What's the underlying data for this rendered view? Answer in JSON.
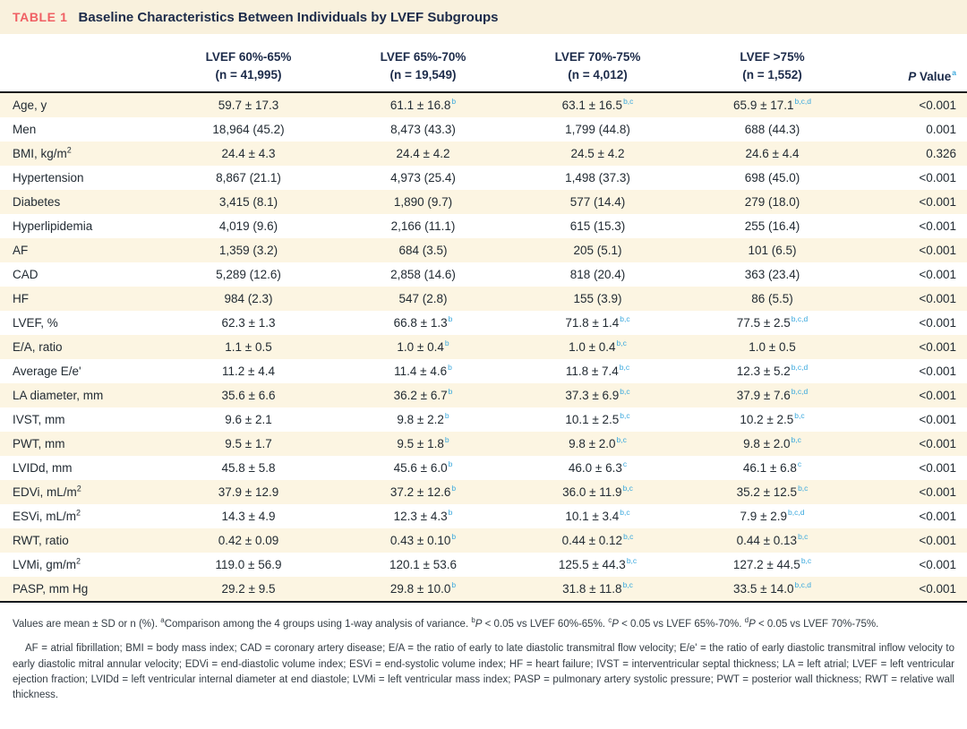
{
  "colors": {
    "accent_red": "#f05f63",
    "heading_navy": "#1c2b4a",
    "superscript_blue": "#3aa8dd",
    "row_band_cream": "#fcf5e2",
    "title_bar_cream": "#f9f1dd"
  },
  "table": {
    "label": "TABLE 1",
    "title": "Baseline Characteristics Between Individuals by LVEF Subgroups",
    "columns": [
      {
        "line1": "LVEF 60%-65%",
        "line2": "(n = 41,995)"
      },
      {
        "line1": "LVEF 65%-70%",
        "line2": "(n = 19,549)"
      },
      {
        "line1": "LVEF 70%-75%",
        "line2": "(n = 4,012)"
      },
      {
        "line1": "LVEF >75%",
        "line2": "(n = 1,552)"
      }
    ],
    "p_header": {
      "italic": "P",
      "text": " Value",
      "sup": "a"
    },
    "rows": [
      {
        "label": "Age, y",
        "label_sup": "",
        "values": [
          {
            "v": "59.7 ± 17.3",
            "sup": ""
          },
          {
            "v": "61.1 ± 16.8",
            "sup": "b"
          },
          {
            "v": "63.1 ± 16.5",
            "sup": "b,c"
          },
          {
            "v": "65.9 ± 17.1",
            "sup": "b,c,d"
          }
        ],
        "p": "<0.001"
      },
      {
        "label": "Men",
        "label_sup": "",
        "values": [
          {
            "v": "18,964 (45.2)",
            "sup": ""
          },
          {
            "v": "8,473 (43.3)",
            "sup": ""
          },
          {
            "v": "1,799 (44.8)",
            "sup": ""
          },
          {
            "v": "688 (44.3)",
            "sup": ""
          }
        ],
        "p": "0.001"
      },
      {
        "label": "BMI, kg/m",
        "label_sup": "2",
        "values": [
          {
            "v": "24.4 ± 4.3",
            "sup": ""
          },
          {
            "v": "24.4 ± 4.2",
            "sup": ""
          },
          {
            "v": "24.5 ± 4.2",
            "sup": ""
          },
          {
            "v": "24.6 ± 4.4",
            "sup": ""
          }
        ],
        "p": "0.326"
      },
      {
        "label": "Hypertension",
        "label_sup": "",
        "values": [
          {
            "v": "8,867 (21.1)",
            "sup": ""
          },
          {
            "v": "4,973 (25.4)",
            "sup": ""
          },
          {
            "v": "1,498 (37.3)",
            "sup": ""
          },
          {
            "v": "698 (45.0)",
            "sup": ""
          }
        ],
        "p": "<0.001"
      },
      {
        "label": "Diabetes",
        "label_sup": "",
        "values": [
          {
            "v": "3,415 (8.1)",
            "sup": ""
          },
          {
            "v": "1,890 (9.7)",
            "sup": ""
          },
          {
            "v": "577 (14.4)",
            "sup": ""
          },
          {
            "v": "279 (18.0)",
            "sup": ""
          }
        ],
        "p": "<0.001"
      },
      {
        "label": "Hyperlipidemia",
        "label_sup": "",
        "values": [
          {
            "v": "4,019 (9.6)",
            "sup": ""
          },
          {
            "v": "2,166 (11.1)",
            "sup": ""
          },
          {
            "v": "615 (15.3)",
            "sup": ""
          },
          {
            "v": "255 (16.4)",
            "sup": ""
          }
        ],
        "p": "<0.001"
      },
      {
        "label": "AF",
        "label_sup": "",
        "values": [
          {
            "v": "1,359 (3.2)",
            "sup": ""
          },
          {
            "v": "684 (3.5)",
            "sup": ""
          },
          {
            "v": "205 (5.1)",
            "sup": ""
          },
          {
            "v": "101 (6.5)",
            "sup": ""
          }
        ],
        "p": "<0.001"
      },
      {
        "label": "CAD",
        "label_sup": "",
        "values": [
          {
            "v": "5,289 (12.6)",
            "sup": ""
          },
          {
            "v": "2,858 (14.6)",
            "sup": ""
          },
          {
            "v": "818 (20.4)",
            "sup": ""
          },
          {
            "v": "363 (23.4)",
            "sup": ""
          }
        ],
        "p": "<0.001"
      },
      {
        "label": "HF",
        "label_sup": "",
        "values": [
          {
            "v": "984 (2.3)",
            "sup": ""
          },
          {
            "v": "547 (2.8)",
            "sup": ""
          },
          {
            "v": "155 (3.9)",
            "sup": ""
          },
          {
            "v": "86 (5.5)",
            "sup": ""
          }
        ],
        "p": "<0.001"
      },
      {
        "label": "LVEF, %",
        "label_sup": "",
        "values": [
          {
            "v": "62.3 ± 1.3",
            "sup": ""
          },
          {
            "v": "66.8 ± 1.3",
            "sup": "b"
          },
          {
            "v": "71.8 ± 1.4",
            "sup": "b,c"
          },
          {
            "v": "77.5 ± 2.5",
            "sup": "b,c,d"
          }
        ],
        "p": "<0.001"
      },
      {
        "label": "E/A, ratio",
        "label_sup": "",
        "values": [
          {
            "v": "1.1 ± 0.5",
            "sup": ""
          },
          {
            "v": "1.0 ± 0.4",
            "sup": "b"
          },
          {
            "v": "1.0 ± 0.4",
            "sup": "b,c"
          },
          {
            "v": "1.0 ± 0.5",
            "sup": ""
          }
        ],
        "p": "<0.001"
      },
      {
        "label": "Average E/e'",
        "label_sup": "",
        "values": [
          {
            "v": "11.2 ± 4.4",
            "sup": ""
          },
          {
            "v": "11.4 ± 4.6",
            "sup": "b"
          },
          {
            "v": "11.8 ± 7.4",
            "sup": "b,c"
          },
          {
            "v": "12.3 ± 5.2",
            "sup": "b,c,d"
          }
        ],
        "p": "<0.001"
      },
      {
        "label": "LA diameter, mm",
        "label_sup": "",
        "values": [
          {
            "v": "35.6 ± 6.6",
            "sup": ""
          },
          {
            "v": "36.2 ± 6.7",
            "sup": "b"
          },
          {
            "v": "37.3 ± 6.9",
            "sup": "b,c"
          },
          {
            "v": "37.9 ± 7.6",
            "sup": "b,c,d"
          }
        ],
        "p": "<0.001"
      },
      {
        "label": "IVST, mm",
        "label_sup": "",
        "values": [
          {
            "v": "9.6 ± 2.1",
            "sup": ""
          },
          {
            "v": "9.8 ± 2.2",
            "sup": "b"
          },
          {
            "v": "10.1 ± 2.5",
            "sup": "b,c"
          },
          {
            "v": "10.2 ± 2.5",
            "sup": "b,c"
          }
        ],
        "p": "<0.001"
      },
      {
        "label": "PWT, mm",
        "label_sup": "",
        "values": [
          {
            "v": "9.5 ± 1.7",
            "sup": ""
          },
          {
            "v": "9.5 ± 1.8",
            "sup": "b"
          },
          {
            "v": "9.8 ± 2.0",
            "sup": "b,c"
          },
          {
            "v": "9.8 ± 2.0",
            "sup": "b,c"
          }
        ],
        "p": "<0.001"
      },
      {
        "label": "LVIDd, mm",
        "label_sup": "",
        "values": [
          {
            "v": "45.8 ± 5.8",
            "sup": ""
          },
          {
            "v": "45.6 ± 6.0",
            "sup": "b"
          },
          {
            "v": "46.0 ± 6.3",
            "sup": "c"
          },
          {
            "v": "46.1 ± 6.8",
            "sup": "c"
          }
        ],
        "p": "<0.001"
      },
      {
        "label": "EDVi, mL/m",
        "label_sup": "2",
        "values": [
          {
            "v": "37.9 ± 12.9",
            "sup": ""
          },
          {
            "v": "37.2 ± 12.6",
            "sup": "b"
          },
          {
            "v": "36.0 ± 11.9",
            "sup": "b,c"
          },
          {
            "v": "35.2 ± 12.5",
            "sup": "b,c"
          }
        ],
        "p": "<0.001"
      },
      {
        "label": "ESVi, mL/m",
        "label_sup": "2",
        "values": [
          {
            "v": "14.3 ± 4.9",
            "sup": ""
          },
          {
            "v": "12.3 ± 4.3",
            "sup": "b"
          },
          {
            "v": "10.1 ± 3.4",
            "sup": "b,c"
          },
          {
            "v": "7.9 ± 2.9",
            "sup": "b,c,d"
          }
        ],
        "p": "<0.001"
      },
      {
        "label": "RWT, ratio",
        "label_sup": "",
        "values": [
          {
            "v": "0.42 ± 0.09",
            "sup": ""
          },
          {
            "v": "0.43 ± 0.10",
            "sup": "b"
          },
          {
            "v": "0.44 ± 0.12",
            "sup": "b,c"
          },
          {
            "v": "0.44 ± 0.13",
            "sup": "b,c"
          }
        ],
        "p": "<0.001"
      },
      {
        "label": "LVMi, gm/m",
        "label_sup": "2",
        "values": [
          {
            "v": "119.0 ± 56.9",
            "sup": ""
          },
          {
            "v": "120.1 ± 53.6",
            "sup": ""
          },
          {
            "v": "125.5 ± 44.3",
            "sup": "b,c"
          },
          {
            "v": "127.2 ± 44.5",
            "sup": "b,c"
          }
        ],
        "p": "<0.001"
      },
      {
        "label": "PASP, mm Hg",
        "label_sup": "",
        "values": [
          {
            "v": "29.2 ± 9.5",
            "sup": ""
          },
          {
            "v": "29.8 ± 10.0",
            "sup": "b"
          },
          {
            "v": "31.8 ± 11.8",
            "sup": "b,c"
          },
          {
            "v": "33.5 ± 14.0",
            "sup": "b,c,d"
          }
        ],
        "p": "<0.001"
      }
    ]
  },
  "footnotes": {
    "general_segments": [
      {
        "t": "Values are mean ± SD or n (%). "
      },
      {
        "t": "a",
        "sup": true
      },
      {
        "t": "Comparison among the 4 groups using 1-way analysis of variance. "
      },
      {
        "t": "b",
        "sup": true
      },
      {
        "t": "P",
        "i": true
      },
      {
        "t": " < 0.05 vs LVEF 60%-65%. "
      },
      {
        "t": "c",
        "sup": true
      },
      {
        "t": "P",
        "i": true
      },
      {
        "t": " < 0.05 vs LVEF 65%-70%. "
      },
      {
        "t": "d",
        "sup": true
      },
      {
        "t": "P",
        "i": true
      },
      {
        "t": " < 0.05 vs LVEF 70%-75%."
      }
    ],
    "abbreviations": "AF = atrial fibrillation; BMI = body mass index; CAD = coronary artery disease; E/A = the ratio of early to late diastolic transmitral flow velocity; E/e' = the ratio of early diastolic transmitral inflow velocity to early diastolic mitral annular velocity; EDVi = end-diastolic volume index; ESVi = end-systolic volume index; HF = heart failure; IVST = interventricular septal thickness; LA = left atrial; LVEF = left ventricular ejection fraction; LVIDd = left ventricular internal diameter at end diastole; LVMi = left ventricular mass index; PASP = pulmonary artery systolic pressure; PWT = posterior wall thickness; RWT = relative wall thickness."
  }
}
